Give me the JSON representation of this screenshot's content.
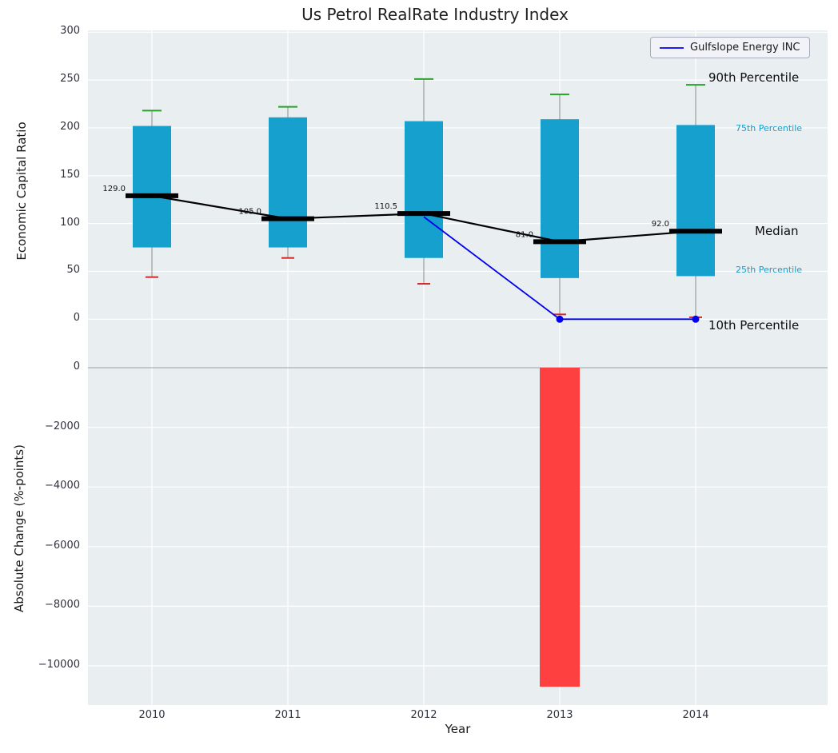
{
  "title": "Us Petrol RealRate Industry Index",
  "legend": {
    "items": [
      {
        "label": "Gulfslope Energy INC",
        "color": "#0000ee"
      }
    ]
  },
  "axes": {
    "xlabel": "Year",
    "top": {
      "ylabel": "Economic Capital Ratio",
      "yticks": [
        300,
        250,
        200,
        150,
        100,
        50,
        0
      ]
    },
    "bottom": {
      "ylabel": "Absolute Change (%-points)",
      "yticks": [
        0,
        -2000,
        -4000,
        -6000,
        -8000,
        -10000
      ]
    }
  },
  "annotations": {
    "p90": "90th Percentile",
    "p75": "75th Percentile",
    "median": "Median",
    "p25": "25th Percentile",
    "p10": "10th Percentile"
  },
  "colors": {
    "box": "#16a0ce",
    "bar_negative": "#ff4040",
    "median_line": "#000000",
    "whisker": "#8a8a8a",
    "cap_top": "#2ca02c",
    "cap_bottom": "#d62728",
    "company_line": "#0000ee",
    "panel_bg": "#e9eef0",
    "grid": "#ffffff",
    "annotation_teal": "#1a9cc7"
  },
  "chart_data": [
    {
      "type": "boxplot",
      "title": "Us Petrol RealRate Industry Index",
      "ylabel": "Economic Capital Ratio",
      "categories": [
        2010,
        2011,
        2012,
        2013,
        2014
      ],
      "p90": [
        218,
        222,
        251,
        235,
        245
      ],
      "p75": [
        202,
        211,
        207,
        209,
        203
      ],
      "median": [
        129.0,
        105.0,
        110.5,
        81.0,
        92.0
      ],
      "p25": [
        75,
        75,
        64,
        43,
        45
      ],
      "p10": [
        44,
        64,
        37,
        5,
        2
      ],
      "median_labels": [
        "129.0",
        "105.0",
        "110.5",
        "81.0",
        "92.0"
      ],
      "ylim": [
        -34,
        300
      ],
      "grid": true,
      "legend_position": "upper right",
      "series": [
        {
          "name": "Gulfslope Energy INC",
          "x": [
            2012,
            2013,
            2014
          ],
          "y": [
            107,
            0,
            0
          ],
          "marker_x": [
            2013,
            2014
          ]
        }
      ]
    },
    {
      "type": "bar",
      "ylabel": "Absolute Change (%-points)",
      "xlabel": "Year",
      "categories": [
        2010,
        2011,
        2012,
        2013,
        2014
      ],
      "values": [
        0,
        0,
        0,
        -10700,
        0
      ],
      "ylim": [
        -11350,
        0
      ],
      "grid": true
    }
  ]
}
